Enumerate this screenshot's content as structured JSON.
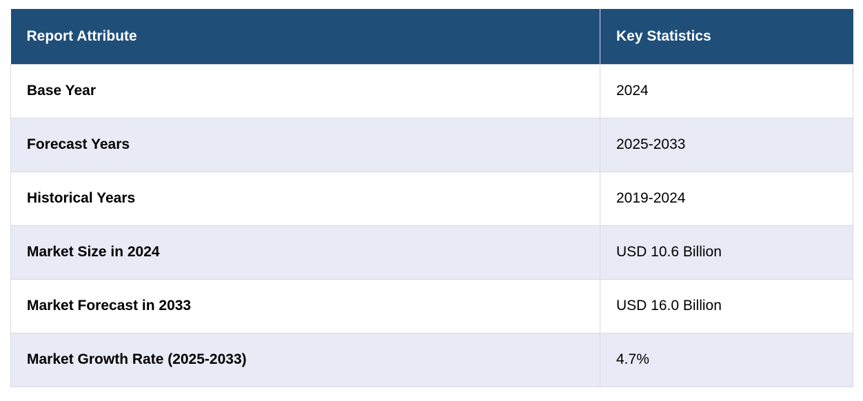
{
  "table": {
    "headers": [
      "Report Attribute",
      "Key Statistics"
    ],
    "rows": [
      {
        "attribute": "Base Year",
        "value": "2024"
      },
      {
        "attribute": "Forecast Years",
        "value": "2025-2033"
      },
      {
        "attribute": "Historical Years",
        "value": "2019-2024"
      },
      {
        "attribute": "Market Size in 2024",
        "value": "USD 10.6 Billion"
      },
      {
        "attribute": "Market Forecast in 2033",
        "value": "USD 16.0 Billion"
      },
      {
        "attribute": "Market Growth Rate (2025-2033)",
        "value": "4.7%"
      }
    ]
  },
  "colors": {
    "header_bg": "#1f4e79",
    "header_text": "#ffffff",
    "row_alt_bg": "#e8eaf5",
    "row_bg": "#ffffff",
    "border": "#d9d9e3"
  }
}
